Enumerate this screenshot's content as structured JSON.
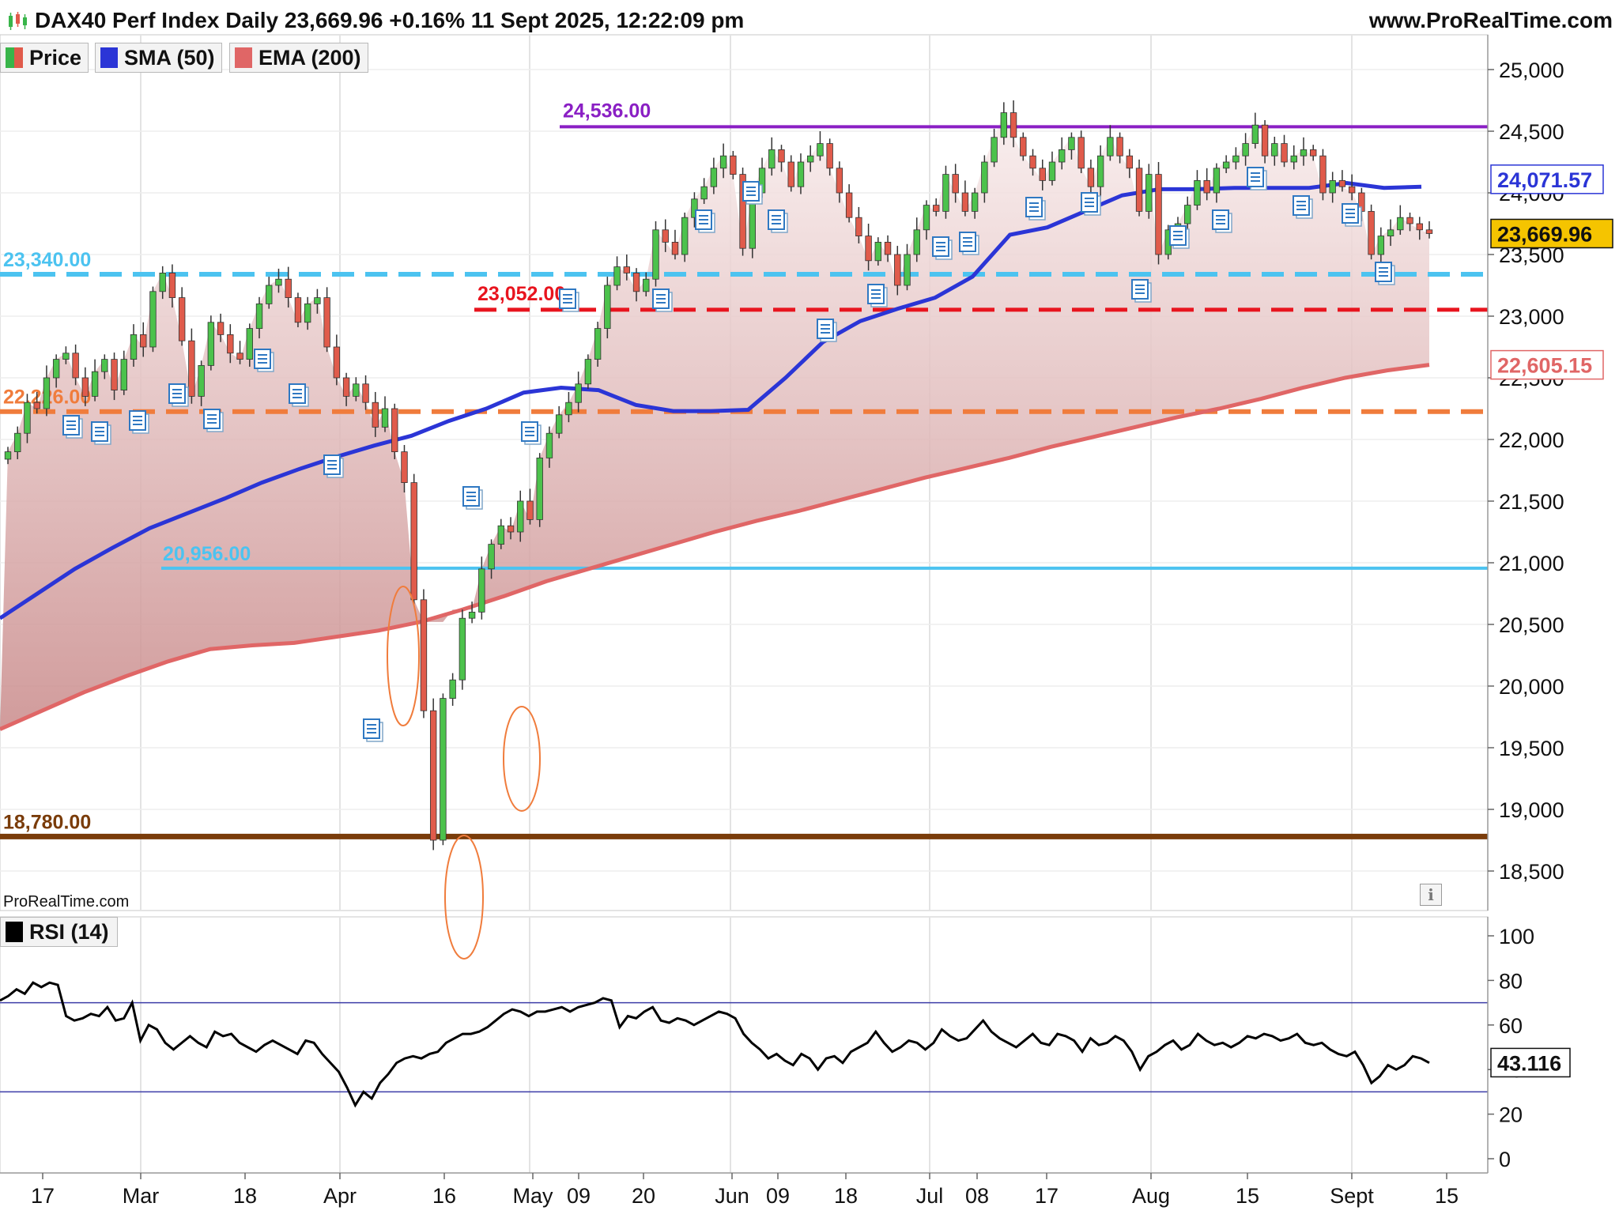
{
  "header": {
    "title": "DAX40 Perf Index Daily 23,669.96 +0.16% 11 Sept 2025, 12:22:09 pm",
    "site": "www.ProRealTime.com",
    "watermark": "ProRealTime.com"
  },
  "legend": [
    {
      "label": "Price",
      "color": "#39b54a"
    },
    {
      "label": "SMA (50)",
      "color": "#2b35d6"
    },
    {
      "label": "EMA (200)",
      "color": "#e06666"
    }
  ],
  "rsi_legend": {
    "label": "RSI (14)",
    "color": "#000000"
  },
  "colors": {
    "up": "#4cc24c",
    "down": "#e05b4b",
    "sma": "#2b35d6",
    "ema": "#e06666",
    "resistance": "#8a1fc4",
    "support_high": "#4cc3f0",
    "support_mid": "#e8141e",
    "support_orange": "#f07c3c",
    "support_low": "#4cc3f0",
    "bottom": "#7a3c0a",
    "price_badge": "#f5c400"
  },
  "chart_data": [
    {
      "type": "candlestick",
      "title": "DAX40 Perf Index Daily",
      "ylim": [
        18300,
        25300
      ],
      "y_ticks": [
        "25,000",
        "24,500",
        "24,000",
        "23,500",
        "23,000",
        "22,500",
        "22,000",
        "21,500",
        "21,000",
        "20,500",
        "20,000",
        "19,500",
        "19,000",
        "18,500"
      ],
      "x_labels": [
        "17",
        "Mar",
        "18",
        "Apr",
        "16",
        "May",
        "09",
        "20",
        "Jun",
        "09",
        "18",
        "Jul",
        "08",
        "17",
        "Aug",
        "15",
        "Sept",
        "15"
      ],
      "closes": [
        21900,
        22050,
        22300,
        22250,
        22500,
        22650,
        22700,
        22500,
        22350,
        22550,
        22650,
        22400,
        22650,
        22850,
        22750,
        23200,
        23350,
        23150,
        22800,
        22350,
        22600,
        22950,
        22850,
        22700,
        22650,
        22900,
        23100,
        23250,
        23300,
        23150,
        22950,
        23100,
        23150,
        22750,
        22500,
        22350,
        22450,
        22300,
        22100,
        22250,
        21900,
        21650,
        20700,
        19800,
        18750,
        19900,
        20050,
        20550,
        20600,
        20950,
        21150,
        21300,
        21250,
        21500,
        21350,
        21850,
        22050,
        22200,
        22300,
        22450,
        22650,
        22900,
        23250,
        23400,
        23350,
        23200,
        23300,
        23700,
        23600,
        23500,
        23800,
        23950,
        24050,
        24200,
        24300,
        24150,
        23550,
        24000,
        24200,
        24350,
        24250,
        24050,
        24250,
        24300,
        24400,
        24200,
        24000,
        23800,
        23650,
        23450,
        23600,
        23500,
        23250,
        23500,
        23700,
        23900,
        23850,
        24150,
        24000,
        23850,
        24000,
        24250,
        24450,
        24650,
        24450,
        24300,
        24200,
        24100,
        24250,
        24350,
        24450,
        24200,
        24050,
        24300,
        24450,
        24300,
        24200,
        23850,
        24150,
        23500,
        23700,
        23750,
        23900,
        24100,
        24000,
        24200,
        24250,
        24300,
        24400,
        24550,
        24300,
        24400,
        24250,
        24300,
        24350,
        24300,
        24000,
        24100,
        24050,
        24000,
        23850,
        23500,
        23650,
        23700,
        23800,
        23750,
        23700,
        23670
      ],
      "sma50": [
        20550,
        20750,
        20950,
        21120,
        21280,
        21400,
        21520,
        21650,
        21760,
        21860,
        21950,
        22030,
        22150,
        22250,
        22380,
        22420,
        22400,
        22280,
        22230,
        22230,
        22240,
        22500,
        22790,
        22960,
        23060,
        23150,
        23320,
        23660,
        23720,
        23850,
        23980,
        24030,
        24030,
        24040,
        24040,
        24040,
        24080,
        24040,
        24050
      ],
      "ema200": [
        19650,
        19800,
        19950,
        20080,
        20200,
        20300,
        20330,
        20350,
        20400,
        20450,
        20520,
        20620,
        20730,
        20850,
        20950,
        21050,
        21150,
        21250,
        21340,
        21420,
        21510,
        21600,
        21690,
        21770,
        21850,
        21940,
        22020,
        22100,
        22180,
        22250,
        22330,
        22420,
        22500,
        22560,
        22605
      ],
      "levels": [
        {
          "label": "24,536.00",
          "value": 24536
        },
        {
          "label": "23,340.00",
          "value": 23340
        },
        {
          "label": "23,052.00",
          "value": 23052
        },
        {
          "label": "22,226.00",
          "value": 22226
        },
        {
          "label": "20,956.00",
          "value": 20956
        },
        {
          "label": "18,780.00",
          "value": 18780
        }
      ],
      "last_values": {
        "sma": "24,071.57",
        "price": "23,669.96",
        "ema": "22,605.15"
      }
    },
    {
      "type": "line",
      "title": "RSI (14)",
      "ylim": [
        0,
        100
      ],
      "y_ticks": [
        "100",
        "80",
        "60",
        "40",
        "20",
        "0"
      ],
      "bands": [
        30,
        70
      ],
      "values": [
        71,
        73,
        76,
        74,
        79,
        77,
        79,
        78,
        64,
        62,
        63,
        65,
        64,
        68,
        62,
        63,
        70,
        53,
        60,
        58,
        52,
        49,
        52,
        55,
        52,
        50,
        57,
        55,
        56,
        52,
        50,
        48,
        51,
        53,
        51,
        49,
        47,
        53,
        52,
        47,
        43,
        39,
        32,
        24,
        30,
        27,
        34,
        38,
        43,
        45,
        46,
        45,
        47,
        48,
        52,
        54,
        56,
        56,
        57,
        59,
        62,
        65,
        67,
        66,
        64,
        66,
        66,
        67,
        68,
        66,
        68,
        69,
        70,
        72,
        71,
        59,
        64,
        63,
        66,
        68,
        62,
        61,
        63,
        62,
        60,
        62,
        64,
        66,
        65,
        63,
        56,
        52,
        49,
        45,
        47,
        44,
        42,
        47,
        45,
        40,
        45,
        46,
        43,
        48,
        50,
        52,
        57,
        52,
        48,
        50,
        53,
        52,
        49,
        52,
        58,
        55,
        53,
        54,
        58,
        62,
        57,
        54,
        52,
        50,
        53,
        56,
        52,
        51,
        56,
        55,
        53,
        48,
        54,
        51,
        52,
        55,
        53,
        48,
        40,
        46,
        48,
        51,
        53,
        49,
        51,
        56,
        53,
        51,
        52,
        50,
        52,
        55,
        54,
        56,
        55,
        53,
        54,
        56,
        52,
        51,
        52,
        49,
        47,
        46,
        48,
        42,
        34,
        37,
        42,
        40,
        42,
        46,
        45,
        43
      ],
      "last_value": "43.116"
    }
  ]
}
